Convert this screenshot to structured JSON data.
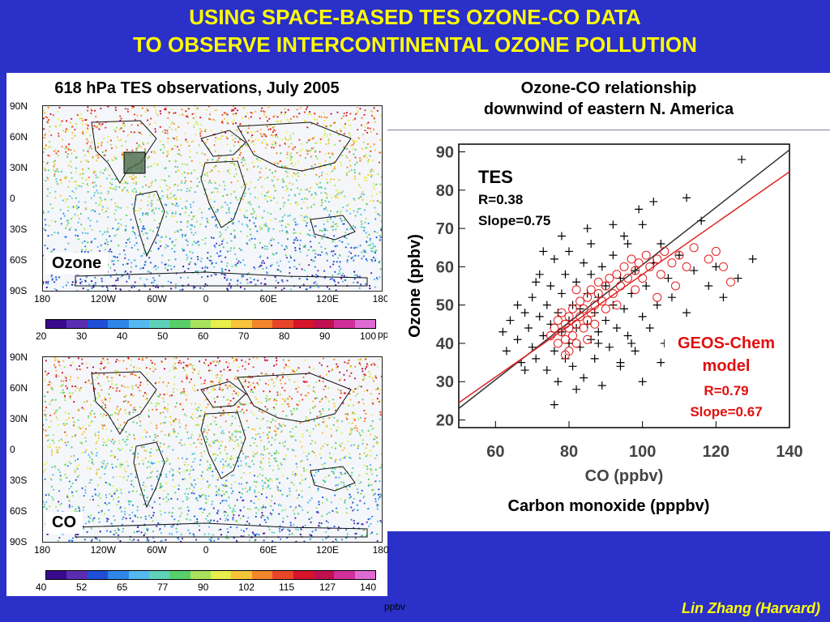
{
  "slide": {
    "title_line1": "USING SPACE-BASED TES OZONE-CO DATA",
    "title_line2": "TO OBSERVE INTERCONTINENTAL OZONE POLLUTION",
    "credit": "Lin Zhang (Harvard)"
  },
  "maps": {
    "heading": "618 hPa TES observations, July 2005",
    "lat_labels": [
      "90N",
      "60N",
      "30N",
      "0",
      "30S",
      "60S",
      "90S"
    ],
    "lon_labels": [
      "180",
      "120W",
      "60W",
      "0",
      "60E",
      "120E",
      "180"
    ],
    "ozone": {
      "label": "Ozone",
      "colorbar_ticks": [
        "20",
        "30",
        "40",
        "50",
        "60",
        "70",
        "80",
        "90",
        "100"
      ],
      "unit": "ppbv"
    },
    "co": {
      "label": "CO",
      "colorbar_ticks": [
        "40",
        "52",
        "65",
        "77",
        "90",
        "102",
        "115",
        "127",
        "140"
      ],
      "unit": "ppbv"
    },
    "colorbar_colors": [
      "#3a0a8c",
      "#5a2db0",
      "#1f4fd6",
      "#2d86e8",
      "#55b9f0",
      "#5fd1b8",
      "#58cf6a",
      "#a9e25c",
      "#e8ee4a",
      "#f6c33a",
      "#f2862a",
      "#e8452a",
      "#d8142a",
      "#c01050",
      "#d02e9a",
      "#e06ad4"
    ]
  },
  "chart_data": {
    "type": "scatter",
    "heading_line1": "Ozone-CO relationship",
    "heading_line2": "downwind of eastern N. America",
    "xlabel": "CO (ppbv)",
    "ylabel": "Ozone (ppbv)",
    "bottom_caption": "Carbon monoxide (pppbv)",
    "xlim": [
      50,
      140
    ],
    "ylim": [
      18,
      92
    ],
    "xticks": [
      60,
      80,
      100,
      120,
      140
    ],
    "yticks": [
      20,
      30,
      40,
      50,
      60,
      70,
      80,
      90
    ],
    "series": [
      {
        "name": "TES",
        "marker": "plus",
        "color": "#000000",
        "annotation": [
          "TES",
          "R=0.38",
          "Slope=0.75"
        ],
        "fit": {
          "slope": 0.75,
          "intercept": -14.5
        },
        "points": [
          [
            62,
            43
          ],
          [
            63,
            38
          ],
          [
            64,
            46
          ],
          [
            66,
            41
          ],
          [
            67,
            35
          ],
          [
            68,
            48
          ],
          [
            69,
            44
          ],
          [
            70,
            39
          ],
          [
            70,
            52
          ],
          [
            71,
            36
          ],
          [
            72,
            47
          ],
          [
            72,
            58
          ],
          [
            73,
            42
          ],
          [
            74,
            33
          ],
          [
            74,
            50
          ],
          [
            75,
            45
          ],
          [
            75,
            55
          ],
          [
            76,
            38
          ],
          [
            76,
            62
          ],
          [
            77,
            48
          ],
          [
            77,
            30
          ],
          [
            78,
            43
          ],
          [
            78,
            53
          ],
          [
            79,
            36
          ],
          [
            79,
            58
          ],
          [
            80,
            46
          ],
          [
            80,
            40
          ],
          [
            80,
            64
          ],
          [
            81,
            50
          ],
          [
            81,
            34
          ],
          [
            82,
            44
          ],
          [
            82,
            56
          ],
          [
            83,
            39
          ],
          [
            83,
            49
          ],
          [
            84,
            61
          ],
          [
            84,
            31
          ],
          [
            85,
            45
          ],
          [
            85,
            53
          ],
          [
            86,
            41
          ],
          [
            86,
            58
          ],
          [
            87,
            36
          ],
          [
            87,
            48
          ],
          [
            88,
            52
          ],
          [
            88,
            43
          ],
          [
            89,
            60
          ],
          [
            89,
            29
          ],
          [
            90,
            46
          ],
          [
            90,
            55
          ],
          [
            91,
            39
          ],
          [
            92,
            50
          ],
          [
            92,
            63
          ],
          [
            93,
            44
          ],
          [
            94,
            57
          ],
          [
            94,
            35
          ],
          [
            95,
            49
          ],
          [
            96,
            42
          ],
          [
            96,
            66
          ],
          [
            97,
            53
          ],
          [
            98,
            38
          ],
          [
            98,
            59
          ],
          [
            100,
            47
          ],
          [
            100,
            71
          ],
          [
            101,
            55
          ],
          [
            102,
            44
          ],
          [
            103,
            61
          ],
          [
            104,
            50
          ],
          [
            105,
            66
          ],
          [
            106,
            40
          ],
          [
            107,
            57
          ],
          [
            108,
            52
          ],
          [
            110,
            63
          ],
          [
            112,
            48
          ],
          [
            114,
            59
          ],
          [
            116,
            72
          ],
          [
            118,
            55
          ],
          [
            120,
            60
          ],
          [
            122,
            52
          ],
          [
            126,
            57
          ],
          [
            130,
            62
          ],
          [
            127,
            88
          ],
          [
            99,
            75
          ],
          [
            95,
            68
          ],
          [
            103,
            77
          ],
          [
            92,
            71
          ],
          [
            86,
            66
          ],
          [
            78,
            68
          ],
          [
            73,
            64
          ],
          [
            66,
            50
          ],
          [
            88,
            40
          ],
          [
            105,
            35
          ],
          [
            110,
            29
          ],
          [
            94,
            34
          ],
          [
            76,
            24
          ],
          [
            82,
            28
          ],
          [
            100,
            30
          ],
          [
            68,
            33
          ],
          [
            71,
            56
          ],
          [
            85,
            70
          ],
          [
            112,
            78
          ],
          [
            97,
            40
          ]
        ]
      },
      {
        "name": "GEOS-Chem model",
        "marker": "circle",
        "color": "#e02020",
        "annotation": [
          "GEOS-Chem",
          "model",
          "R=0.79",
          "Slope=0.67"
        ],
        "fit": {
          "slope": 0.67,
          "intercept": -9.0
        },
        "points": [
          [
            75,
            42
          ],
          [
            76,
            44
          ],
          [
            77,
            40
          ],
          [
            77,
            46
          ],
          [
            78,
            43
          ],
          [
            78,
            48
          ],
          [
            79,
            41
          ],
          [
            79,
            45
          ],
          [
            80,
            38
          ],
          [
            80,
            44
          ],
          [
            80,
            47
          ],
          [
            81,
            42
          ],
          [
            81,
            49
          ],
          [
            82,
            45
          ],
          [
            82,
            40
          ],
          [
            83,
            47
          ],
          [
            83,
            51
          ],
          [
            84,
            44
          ],
          [
            84,
            49
          ],
          [
            85,
            46
          ],
          [
            85,
            52
          ],
          [
            86,
            48
          ],
          [
            86,
            54
          ],
          [
            87,
            50
          ],
          [
            87,
            45
          ],
          [
            88,
            53
          ],
          [
            88,
            56
          ],
          [
            89,
            51
          ],
          [
            90,
            55
          ],
          [
            90,
            49
          ],
          [
            91,
            57
          ],
          [
            92,
            53
          ],
          [
            93,
            58
          ],
          [
            94,
            55
          ],
          [
            95,
            60
          ],
          [
            96,
            57
          ],
          [
            97,
            62
          ],
          [
            98,
            59
          ],
          [
            99,
            61
          ],
          [
            100,
            57
          ],
          [
            101,
            63
          ],
          [
            102,
            60
          ],
          [
            104,
            62
          ],
          [
            105,
            58
          ],
          [
            106,
            64
          ],
          [
            108,
            61
          ],
          [
            110,
            63
          ],
          [
            112,
            60
          ],
          [
            114,
            65
          ],
          [
            118,
            62
          ],
          [
            120,
            64
          ],
          [
            122,
            60
          ],
          [
            124,
            56
          ],
          [
            109,
            55
          ],
          [
            104,
            52
          ],
          [
            98,
            54
          ],
          [
            93,
            50
          ],
          [
            85,
            41
          ],
          [
            79,
            37
          ],
          [
            82,
            54
          ]
        ]
      }
    ]
  }
}
